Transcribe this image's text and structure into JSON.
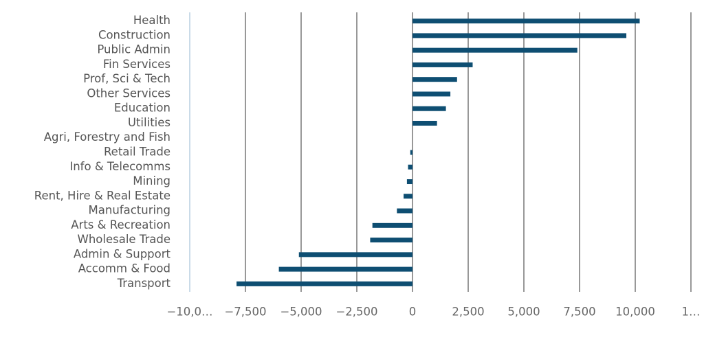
{
  "chart_data": {
    "type": "bar",
    "orientation": "horizontal",
    "color": "#0e4e72",
    "grid": true,
    "categories": [
      "Health",
      "Construction",
      "Public Admin",
      "Fin Services",
      "Prof, Sci & Tech",
      "Other Services",
      "Education",
      "Utilities",
      "Agri, Forestry and Fish",
      "Retail Trade",
      "Info & Telecomms",
      "Mining",
      "Rent, Hire & Real Estate",
      "Manufacturing",
      "Arts & Recreation",
      "Wholesale Trade",
      "Admin & Support",
      "Accomm & Food",
      "Transport"
    ],
    "values": [
      10200,
      9600,
      7400,
      2700,
      2000,
      1700,
      1500,
      1100,
      0,
      -100,
      -200,
      -250,
      -400,
      -700,
      -1800,
      -1900,
      -5100,
      -6000,
      -7900
    ],
    "xlim": [
      -10000,
      12500
    ],
    "xticks": [
      {
        "value": -10000,
        "label": "−10,0…"
      },
      {
        "value": -7500,
        "label": "−7,500"
      },
      {
        "value": -5000,
        "label": "−5,000"
      },
      {
        "value": -2500,
        "label": "−2,500"
      },
      0,
      {
        "value": 2500,
        "label": "2,500"
      },
      {
        "value": 5000,
        "label": "5,000"
      },
      {
        "value": 7500,
        "label": "7,500"
      },
      {
        "value": 10000,
        "label": "10,000"
      },
      {
        "value": 12500,
        "label": "1…"
      }
    ]
  }
}
